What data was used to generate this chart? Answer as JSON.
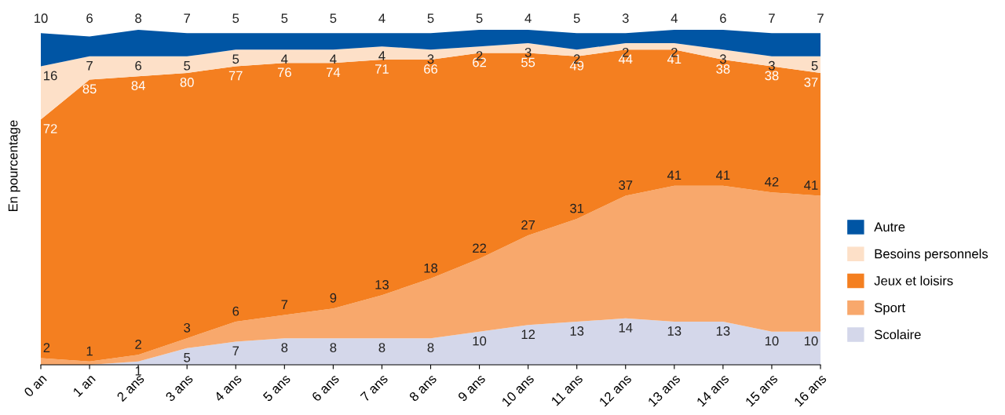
{
  "chart_data": {
    "type": "area",
    "stacked": true,
    "ylabel": "En pourcentage",
    "categories": [
      "0 an",
      "1 an",
      "2 ans",
      "3 ans",
      "4 ans",
      "5 ans",
      "6 ans",
      "7 ans",
      "8 ans",
      "9 ans",
      "10 ans",
      "11 ans",
      "12 ans",
      "13 ans",
      "14 ans",
      "15 ans",
      "16 ans"
    ],
    "tick_labels": "x",
    "grid": false,
    "legend": "right",
    "series": [
      {
        "name": "Scolaire",
        "color": "#d4d7ea",
        "values": [
          0,
          0,
          1,
          5,
          7,
          8,
          8,
          8,
          8,
          10,
          12,
          13,
          14,
          13,
          13,
          10,
          10
        ],
        "value_labels": [
          null,
          null,
          "1",
          "5",
          "7",
          "8",
          "8",
          "8",
          "8",
          "10",
          "12",
          "13",
          "14",
          "13",
          "13",
          "10",
          "10"
        ]
      },
      {
        "name": "Sport",
        "color": "#f8a86c",
        "values": [
          2,
          1,
          2,
          3,
          6,
          7,
          9,
          13,
          18,
          22,
          27,
          31,
          37,
          41,
          41,
          42,
          41
        ],
        "value_labels": [
          "2",
          "1",
          "2",
          "3",
          "6",
          "7",
          "9",
          "13",
          "18",
          "22",
          "27",
          "31",
          "37",
          "41",
          "41",
          "42",
          "41"
        ]
      },
      {
        "name": "Jeux et loisirs",
        "color": "#f47f20",
        "values": [
          72,
          85,
          84,
          80,
          77,
          76,
          74,
          71,
          66,
          62,
          55,
          49,
          44,
          41,
          38,
          38,
          37
        ],
        "value_labels": [
          "72",
          "85",
          "84",
          "80",
          "77",
          "76",
          "74",
          "71",
          "66",
          "62",
          "55",
          "49",
          "44",
          "41",
          "38",
          "38",
          "37"
        ]
      },
      {
        "name": "Besoins personnels",
        "color": "#fde0c8",
        "values": [
          16,
          7,
          6,
          5,
          5,
          4,
          4,
          4,
          3,
          2,
          3,
          2,
          2,
          2,
          3,
          3,
          5
        ],
        "value_labels": [
          "16",
          "7",
          "6",
          "5",
          "5",
          "4",
          "4",
          "4",
          "3",
          "2",
          "3",
          "2",
          "2",
          "2",
          "3",
          "3",
          "5"
        ]
      },
      {
        "name": "Autre",
        "color": "#0055a4",
        "values": [
          10,
          6,
          8,
          7,
          5,
          5,
          5,
          4,
          5,
          5,
          4,
          5,
          3,
          4,
          6,
          7,
          7
        ],
        "value_labels": [
          "10",
          "6",
          "8",
          "7",
          "5",
          "5",
          "5",
          "4",
          "5",
          "5",
          "4",
          "5",
          "3",
          "4",
          "6",
          "7",
          "7"
        ]
      }
    ]
  }
}
